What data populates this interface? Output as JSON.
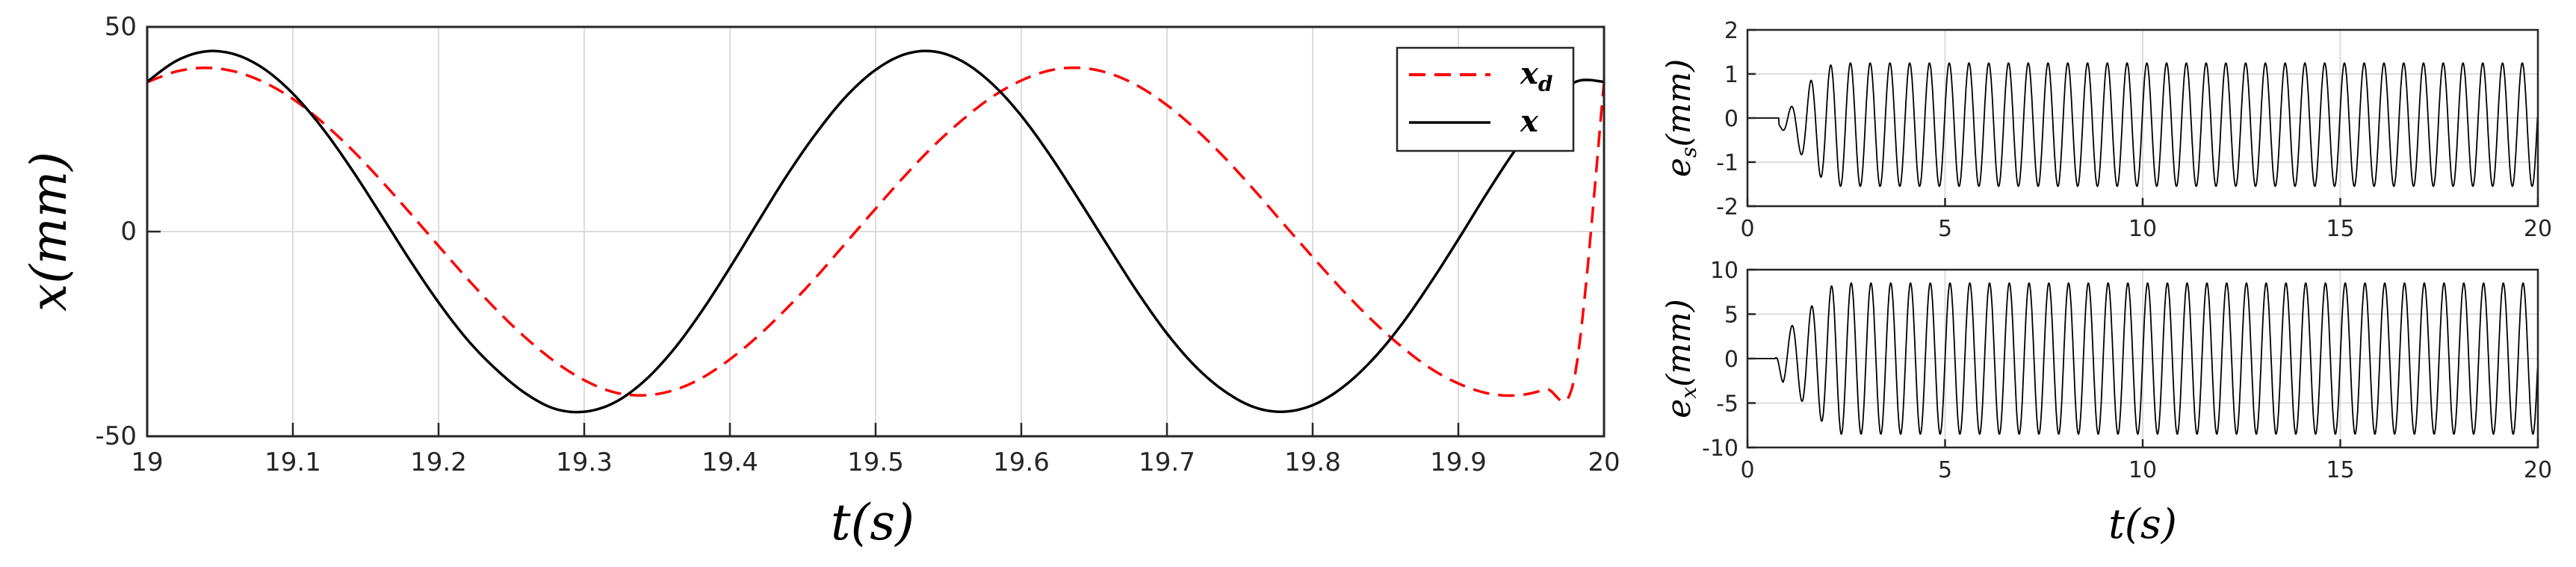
{
  "chart_data": [
    {
      "type": "line",
      "title": "",
      "xlabel": "t(s)",
      "ylabel": "x(mm)",
      "xlim": [
        19,
        20
      ],
      "ylim": [
        -50,
        50
      ],
      "xticks": [
        19,
        19.1,
        19.2,
        19.3,
        19.4,
        19.5,
        19.6,
        19.7,
        19.8,
        19.9,
        20
      ],
      "xtick_labels": [
        "19",
        "19.1",
        "19.2",
        "19.3",
        "19.4",
        "19.5",
        "19.6",
        "19.7",
        "19.8",
        "19.9",
        "20"
      ],
      "yticks": [
        -50,
        0,
        50
      ],
      "ytick_labels": [
        "-50",
        "0",
        "50"
      ],
      "grid": true,
      "legend": "top-right",
      "series": [
        {
          "name": "x_d",
          "display": "x",
          "subscript": "d",
          "color": "#ff0000",
          "style": "dashed",
          "x": [
            19.0,
            19.02,
            19.04,
            19.06,
            19.08,
            19.1,
            19.12,
            19.14,
            19.16,
            19.18,
            19.2,
            19.22,
            19.24,
            19.26,
            19.28,
            19.3,
            19.32,
            19.34,
            19.36,
            19.38,
            19.4,
            19.42,
            19.44,
            19.46,
            19.48,
            19.5,
            19.52,
            19.54,
            19.56,
            19.58,
            19.6,
            19.62,
            19.64,
            19.66,
            19.68,
            19.7,
            19.72,
            19.74,
            19.76,
            19.78,
            19.8,
            19.82,
            19.84,
            19.86,
            19.88,
            19.9,
            19.92,
            19.94,
            19.96,
            19.98,
            20.0
          ],
          "y": [
            36.5,
            39.1,
            40.0,
            39.1,
            36.5,
            32.4,
            26.8,
            20.2,
            12.7,
            4.7,
            -3.5,
            -11.6,
            -19.2,
            -26.0,
            -31.8,
            -36.3,
            -39.2,
            -40.0,
            -38.9,
            -35.9,
            -31.2,
            -25.3,
            -18.4,
            -10.8,
            -2.6,
            5.6,
            13.6,
            21.0,
            27.4,
            32.9,
            36.9,
            39.4,
            40.0,
            38.7,
            35.6,
            30.9,
            24.9,
            17.9,
            10.1,
            1.9,
            -6.2,
            -14.1,
            -21.4,
            -27.8,
            -33.2,
            -37.1,
            -39.5,
            -40.0,
            -38.5,
            -35.2,
            36.5
          ]
        },
        {
          "name": "x",
          "display": "x",
          "subscript": "",
          "color": "#000000",
          "style": "solid",
          "x": [
            19.0,
            19.02,
            19.04,
            19.06,
            19.08,
            19.1,
            19.12,
            19.14,
            19.16,
            19.18,
            19.2,
            19.22,
            19.24,
            19.26,
            19.28,
            19.3,
            19.32,
            19.34,
            19.36,
            19.38,
            19.4,
            19.42,
            19.44,
            19.46,
            19.48,
            19.5,
            19.52,
            19.54,
            19.56,
            19.58,
            19.6,
            19.62,
            19.64,
            19.66,
            19.68,
            19.7,
            19.72,
            19.74,
            19.76,
            19.78,
            19.8,
            19.82,
            19.84,
            19.86,
            19.88,
            19.9,
            19.92,
            19.94,
            19.96,
            19.98,
            20.0
          ],
          "y": [
            36.6,
            41.7,
            44.0,
            43.3,
            39.8,
            33.7,
            25.4,
            15.4,
            4.4,
            -6.8,
            -17.3,
            -26.5,
            -33.8,
            -39.6,
            -43.3,
            -44.0,
            -41.9,
            -36.9,
            -29.4,
            -19.8,
            -8.8,
            2.8,
            14.2,
            24.4,
            33.1,
            39.5,
            43.3,
            44.0,
            41.5,
            36.1,
            28.3,
            18.5,
            7.5,
            -3.8,
            -14.9,
            -24.9,
            -33.1,
            -39.1,
            -42.9,
            -44.0,
            -42.4,
            -38.2,
            -31.7,
            -23.2,
            -13.0,
            -1.9,
            9.6,
            20.4,
            29.5,
            36.5,
            36.6
          ]
        }
      ]
    },
    {
      "type": "line",
      "title": "",
      "xlabel": "",
      "ylabel": "e_s(mm)",
      "ylabel_main": "e",
      "ylabel_sub": "s",
      "ylabel_tail": "(mm)",
      "xlim": [
        0,
        20
      ],
      "ylim": [
        -2,
        2
      ],
      "xticks": [
        0,
        5,
        10,
        15,
        20
      ],
      "xtick_labels": [
        "0",
        "5",
        "10",
        "15",
        "20"
      ],
      "yticks": [
        -2,
        -1,
        0,
        1,
        2
      ],
      "ytick_labels": [
        "-2",
        "-1",
        "0",
        "1",
        "2"
      ],
      "grid": true,
      "series": [
        {
          "name": "e_s",
          "color": "#000000",
          "signal": {
            "frequency_hz": 2,
            "phase_rad": 0.25,
            "settled_after_s": 2.2,
            "envelope": [
              [
                0,
                0
              ],
              [
                0.8,
                0
              ],
              [
                1.0,
                0.3
              ],
              [
                1.3,
                0.6
              ],
              [
                1.6,
                1.0
              ],
              [
                2.0,
                1.3
              ],
              [
                2.2,
                1.4
              ],
              [
                20,
                1.4
              ]
            ],
            "offset": -0.15
          }
        }
      ]
    },
    {
      "type": "line",
      "title": "",
      "xlabel": "t(s)",
      "ylabel": "e_x(mm)",
      "ylabel_main": "e",
      "ylabel_sub": "x",
      "ylabel_tail": "(mm)",
      "xlim": [
        0,
        20
      ],
      "ylim": [
        -10,
        10
      ],
      "xticks": [
        0,
        5,
        10,
        15,
        20
      ],
      "xtick_labels": [
        "0",
        "5",
        "10",
        "15",
        "20"
      ],
      "yticks": [
        -10,
        -5,
        0,
        5,
        10
      ],
      "ytick_labels": [
        "-10",
        "-5",
        "0",
        "5",
        "10"
      ],
      "grid": true,
      "series": [
        {
          "name": "e_x",
          "color": "#000000",
          "signal": {
            "frequency_hz": 2,
            "phase_rad": 0,
            "settled_after_s": 2.2,
            "envelope": [
              [
                0,
                0
              ],
              [
                0.7,
                0
              ],
              [
                0.9,
                2.8
              ],
              [
                1.2,
                4.0
              ],
              [
                1.6,
                5.8
              ],
              [
                2.2,
                8.5
              ],
              [
                20,
                8.5
              ]
            ],
            "offset": 0
          }
        }
      ]
    }
  ]
}
